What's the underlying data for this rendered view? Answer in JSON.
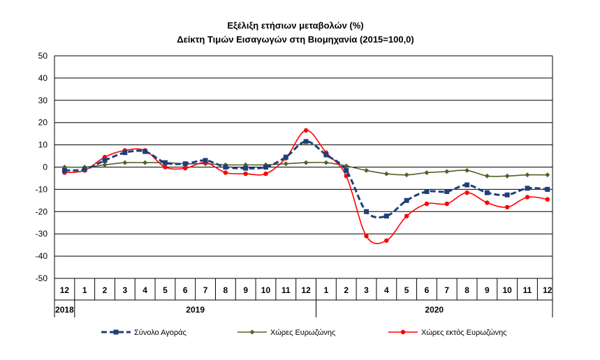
{
  "chart_data": {
    "type": "line",
    "title": "Εξέλιξη ετήσιων μεταβολών (%)",
    "subtitle": "Δείκτη Τιμών Εισαγωγών στη Βιομηχανία (2015=100,0)",
    "ylim": [
      -50,
      50
    ],
    "yticks": [
      "50",
      "40",
      "30",
      "20",
      "10",
      "0",
      "-10",
      "-20",
      "-30",
      "-40",
      "-50"
    ],
    "categories": [
      "12",
      "1",
      "2",
      "3",
      "4",
      "5",
      "6",
      "7",
      "8",
      "9",
      "10",
      "11",
      "12",
      "1",
      "2",
      "3",
      "4",
      "5",
      "6",
      "7",
      "8",
      "9",
      "10",
      "11",
      "12"
    ],
    "years": [
      {
        "label": "2018",
        "start": 0,
        "end": 0
      },
      {
        "label": "2019",
        "start": 1,
        "end": 12
      },
      {
        "label": "2020",
        "start": 13,
        "end": 24
      }
    ],
    "grid": true,
    "legend_position": "bottom",
    "series": [
      {
        "name": "Σύνολο Αγοράς",
        "color": "#1F3F7A",
        "style": "dashed",
        "marker": "square",
        "values": [
          -1.5,
          -1.0,
          3.0,
          6.5,
          7.0,
          2.0,
          1.5,
          3.0,
          0.0,
          -0.5,
          0.0,
          4.5,
          11.5,
          5.5,
          -1.5,
          -20.0,
          -22.0,
          -15.0,
          -11.0,
          -11.0,
          -8.0,
          -11.5,
          -12.5,
          -9.5,
          -10.0
        ]
      },
      {
        "name": "Χώρες Ευρωζώνης",
        "color": "#4F6228",
        "style": "solid",
        "marker": "diamond",
        "values": [
          0.0,
          0.0,
          1.0,
          2.0,
          2.0,
          2.0,
          1.5,
          1.5,
          1.0,
          1.0,
          1.0,
          1.5,
          2.0,
          2.0,
          0.5,
          -1.5,
          -3.0,
          -3.5,
          -2.5,
          -2.0,
          -1.5,
          -4.0,
          -4.0,
          -3.5,
          -3.5
        ]
      },
      {
        "name": "Χώρες εκτός Ευρωζώνης",
        "color": "#FF0000",
        "style": "solid",
        "marker": "circle",
        "values": [
          -2.5,
          -1.5,
          4.5,
          7.5,
          7.5,
          0.0,
          -0.5,
          2.0,
          -2.5,
          -3.0,
          -3.0,
          4.0,
          16.5,
          6.5,
          -4.0,
          -31.0,
          -33.0,
          -22.0,
          -16.5,
          -16.5,
          -11.5,
          -16.0,
          -18.0,
          -13.5,
          -14.5
        ]
      }
    ]
  }
}
